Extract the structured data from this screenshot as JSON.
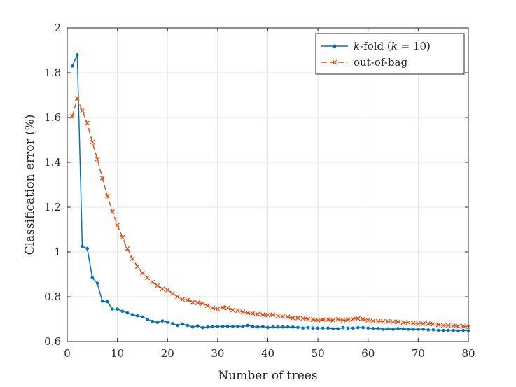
{
  "chart_data": {
    "type": "line",
    "xlabel": "Number of trees",
    "ylabel": "Classification error (%)",
    "xlim": [
      0,
      80
    ],
    "ylim": [
      0.6,
      2
    ],
    "x_ticks": [
      "0",
      "10",
      "20",
      "30",
      "40",
      "50",
      "60",
      "70",
      "80"
    ],
    "y_ticks": [
      "0.6",
      "0.8",
      "1",
      "1.2",
      "1.4",
      "1.6",
      "1.8",
      "2"
    ],
    "grid": true,
    "legend_position": "top-right",
    "series": [
      {
        "name_parts": {
          "k_italic": "k",
          "before": "-fold (",
          "k2_italic": "k",
          "after": " = 10)"
        },
        "color": "#0072bd",
        "marker": "dot",
        "line_style": "solid",
        "x": [
          1,
          2,
          3,
          4,
          5,
          6,
          7,
          8,
          9,
          10,
          11,
          12,
          13,
          14,
          15,
          16,
          17,
          18,
          19,
          20,
          21,
          22,
          23,
          24,
          25,
          26,
          27,
          28,
          29,
          30,
          31,
          32,
          33,
          34,
          35,
          36,
          37,
          38,
          39,
          40,
          41,
          42,
          43,
          44,
          45,
          46,
          47,
          48,
          49,
          50,
          51,
          52,
          53,
          54,
          55,
          56,
          57,
          58,
          59,
          60,
          61,
          62,
          63,
          64,
          65,
          66,
          67,
          68,
          69,
          70,
          71,
          72,
          73,
          74,
          75,
          76,
          77,
          78,
          79,
          80
        ],
        "values": [
          1.83,
          1.88,
          1.025,
          1.015,
          0.885,
          0.86,
          0.78,
          0.778,
          0.745,
          0.745,
          0.735,
          0.728,
          0.72,
          0.715,
          0.71,
          0.7,
          0.69,
          0.685,
          0.692,
          0.686,
          0.68,
          0.672,
          0.678,
          0.672,
          0.665,
          0.67,
          0.662,
          0.665,
          0.667,
          0.667,
          0.668,
          0.668,
          0.667,
          0.668,
          0.667,
          0.672,
          0.667,
          0.665,
          0.667,
          0.663,
          0.665,
          0.665,
          0.665,
          0.665,
          0.665,
          0.663,
          0.66,
          0.662,
          0.66,
          0.66,
          0.66,
          0.66,
          0.657,
          0.657,
          0.662,
          0.66,
          0.66,
          0.662,
          0.662,
          0.66,
          0.658,
          0.658,
          0.655,
          0.657,
          0.655,
          0.658,
          0.657,
          0.655,
          0.655,
          0.655,
          0.655,
          0.652,
          0.652,
          0.65,
          0.65,
          0.65,
          0.65,
          0.648,
          0.65,
          0.648
        ]
      },
      {
        "name": "out-of-bag",
        "color": "#d95319",
        "marker": "x",
        "line_style": "dashed",
        "x": [
          1,
          2,
          3,
          4,
          5,
          6,
          7,
          8,
          9,
          10,
          11,
          12,
          13,
          14,
          15,
          16,
          17,
          18,
          19,
          20,
          21,
          22,
          23,
          24,
          25,
          26,
          27,
          28,
          29,
          30,
          31,
          32,
          33,
          34,
          35,
          36,
          37,
          38,
          39,
          40,
          41,
          42,
          43,
          44,
          45,
          46,
          47,
          48,
          49,
          50,
          51,
          52,
          53,
          54,
          55,
          56,
          57,
          58,
          59,
          60,
          61,
          62,
          63,
          64,
          65,
          66,
          67,
          68,
          69,
          70,
          71,
          72,
          73,
          74,
          75,
          76,
          77,
          78,
          79,
          80
        ],
        "values": [
          1.605,
          1.685,
          1.63,
          1.575,
          1.49,
          1.415,
          1.33,
          1.25,
          1.18,
          1.12,
          1.065,
          1.015,
          0.97,
          0.935,
          0.905,
          0.885,
          0.865,
          0.85,
          0.835,
          0.83,
          0.815,
          0.8,
          0.788,
          0.785,
          0.775,
          0.773,
          0.77,
          0.76,
          0.75,
          0.745,
          0.752,
          0.75,
          0.74,
          0.738,
          0.732,
          0.728,
          0.725,
          0.722,
          0.72,
          0.718,
          0.72,
          0.715,
          0.712,
          0.71,
          0.705,
          0.705,
          0.703,
          0.7,
          0.698,
          0.695,
          0.698,
          0.698,
          0.695,
          0.7,
          0.695,
          0.698,
          0.7,
          0.703,
          0.7,
          0.695,
          0.692,
          0.69,
          0.69,
          0.69,
          0.688,
          0.688,
          0.685,
          0.685,
          0.682,
          0.68,
          0.68,
          0.68,
          0.678,
          0.675,
          0.672,
          0.672,
          0.67,
          0.668,
          0.668,
          0.665
        ]
      }
    ]
  }
}
